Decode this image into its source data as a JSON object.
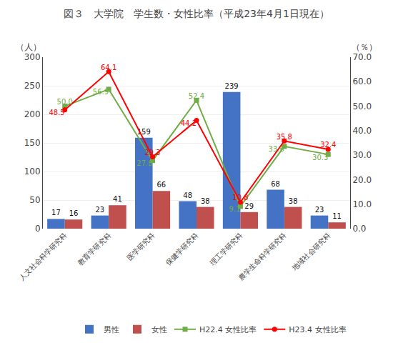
{
  "chart_data": {
    "type": "bar",
    "title": "図３　大学院　学生数・女性比率（平成23年4月1日現在）",
    "categories": [
      "人文社会科学研究科",
      "教育学研究科",
      "医学研究科",
      "保健学研究科",
      "理工学研究科",
      "農学生命科学研究科",
      "地域社会研究科"
    ],
    "series": [
      {
        "name": "男性",
        "type": "bar",
        "color": "#4472c4",
        "values": [
          17,
          23,
          159,
          48,
          239,
          68,
          23
        ]
      },
      {
        "name": "女性",
        "type": "bar",
        "color": "#c0504d",
        "values": [
          16,
          41,
          66,
          38,
          29,
          38,
          11
        ]
      },
      {
        "name": "H22.4 女性比率",
        "type": "line",
        "axis": "y2",
        "color": "#70ad47",
        "marker": "square",
        "values": [
          50.0,
          56.9,
          27.8,
          52.4,
          9.1,
          33.6,
          30.3
        ],
        "value_labels": [
          "50.0",
          "56.9",
          "27.8",
          "52.4",
          "9.1",
          "33.6",
          "30.3"
        ]
      },
      {
        "name": "H23.4 女性比率",
        "type": "line",
        "axis": "y2",
        "color": "#ff0000",
        "marker": "circle",
        "values": [
          48.5,
          64.1,
          29.3,
          44.2,
          10.8,
          35.8,
          32.4
        ]
      }
    ],
    "ylabel": "（人）",
    "y2label": "（％）",
    "ylim": [
      0,
      300
    ],
    "yticks": [
      0,
      50,
      100,
      150,
      200,
      250,
      300
    ],
    "y2lim": [
      0.0,
      70.0
    ],
    "y2ticks": [
      {
        "value": 0,
        "label": "0.0"
      },
      {
        "value": 10,
        "label": "10.0"
      },
      {
        "value": 20,
        "label": "20.0"
      },
      {
        "value": 30,
        "label": "30.0"
      },
      {
        "value": 40,
        "label": "40.0"
      },
      {
        "value": 50,
        "label": "50.0"
      },
      {
        "value": 60,
        "label": "60.0"
      },
      {
        "value": 70,
        "label": "70.0"
      }
    ],
    "grid": true,
    "legend": "lower right",
    "data_labels": true
  }
}
